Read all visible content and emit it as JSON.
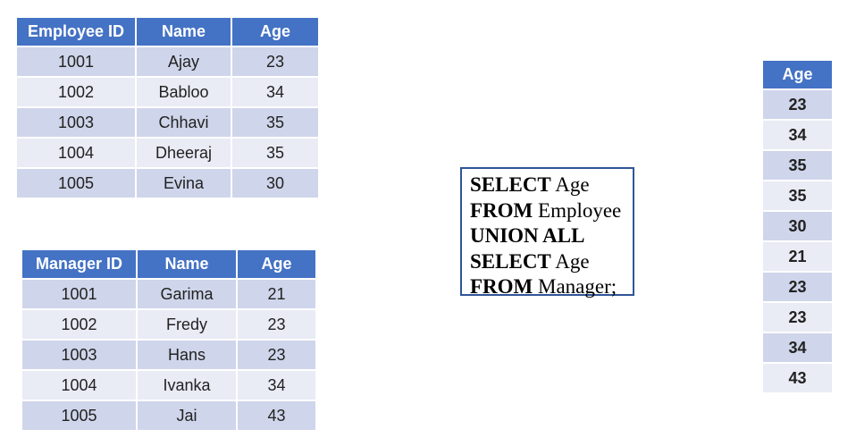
{
  "employee_table": {
    "headers": [
      "Employee ID",
      "Name",
      "Age"
    ],
    "rows": [
      [
        "1001",
        "Ajay",
        "23"
      ],
      [
        "1002",
        "Babloo",
        "34"
      ],
      [
        "1003",
        "Chhavi",
        "35"
      ],
      [
        "1004",
        "Dheeraj",
        "35"
      ],
      [
        "1005",
        "Evina",
        "30"
      ]
    ]
  },
  "manager_table": {
    "headers": [
      "Manager ID",
      "Name",
      "Age"
    ],
    "rows": [
      [
        "1001",
        "Garima",
        "21"
      ],
      [
        "1002",
        "Fredy",
        "23"
      ],
      [
        "1003",
        "Hans",
        "23"
      ],
      [
        "1004",
        "Ivanka",
        "34"
      ],
      [
        "1005",
        "Jai",
        "43"
      ]
    ]
  },
  "query": {
    "lines": [
      {
        "keyword": "SELECT",
        "rest": " Age"
      },
      {
        "keyword": "FROM",
        "rest": " Employee"
      },
      {
        "keyword": "UNION ALL",
        "rest": ""
      },
      {
        "keyword": "SELECT",
        "rest": " Age"
      },
      {
        "keyword": "FROM",
        "rest": " Manager;"
      }
    ]
  },
  "result_table": {
    "header": "Age",
    "values": [
      "23",
      "34",
      "35",
      "35",
      "30",
      "21",
      "23",
      "23",
      "34",
      "43"
    ]
  },
  "colors": {
    "header_bg": "#4472c4",
    "row_dark": "#cfd5ea",
    "row_light": "#e9ebf5",
    "query_border": "#2f5597"
  }
}
